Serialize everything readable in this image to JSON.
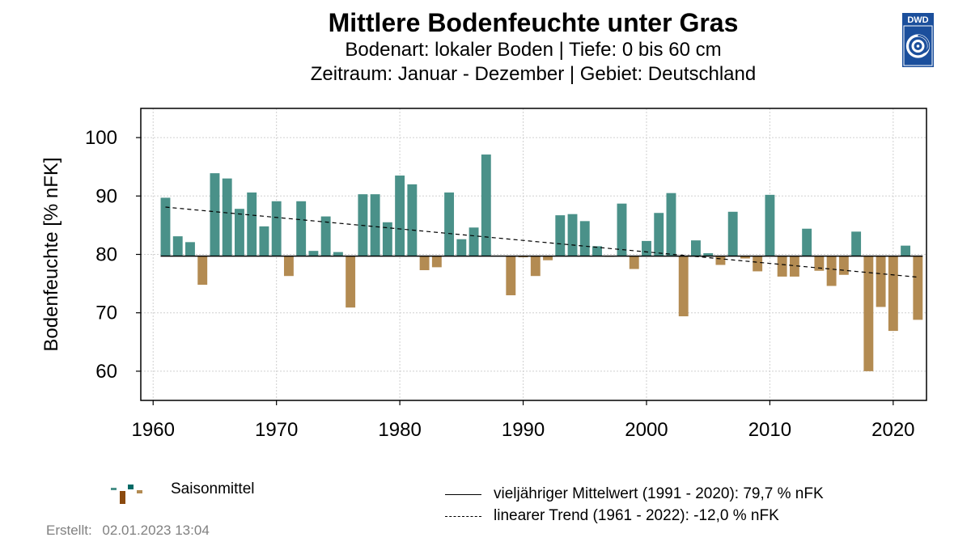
{
  "header": {
    "title": "Mittlere Bodenfeuchte unter Gras",
    "subtitle1": "Bodenart: lokaler Boden | Tiefe: 0 bis 60 cm",
    "subtitle2": "Zeitraum: Januar - Dezember | Gebiet: Deutschland",
    "logo_text": "DWD"
  },
  "legend": {
    "season_label": "Saisonmittel",
    "mean_label": "vieljähriger Mittelwert (1991 - 2020): 79,7 % nFK",
    "trend_label": "linearer Trend (1961 - 2022): -12,0 % nFK"
  },
  "footer": {
    "created_label": "Erstellt:",
    "created_value": "02.01.2023 13:04"
  },
  "colors": {
    "above": "#4a9189",
    "below": "#b38b52",
    "logo_bg": "#1b4f9c"
  },
  "chart_data": {
    "type": "bar",
    "ylabel": "Bodenfeuchte [% nFK]",
    "xlim": [
      1959,
      2022.7
    ],
    "ylim": [
      55,
      105
    ],
    "x_ticks": [
      1960,
      1970,
      1980,
      1990,
      2000,
      2010,
      2020
    ],
    "y_ticks": [
      60,
      70,
      80,
      90,
      100
    ],
    "grid": true,
    "baseline": 79.7,
    "trend": {
      "start": [
        1961,
        88.1
      ],
      "end": [
        2022,
        76.1
      ]
    },
    "years": [
      1961,
      1962,
      1963,
      1964,
      1965,
      1966,
      1967,
      1968,
      1969,
      1970,
      1971,
      1972,
      1973,
      1974,
      1975,
      1976,
      1977,
      1978,
      1979,
      1980,
      1981,
      1982,
      1983,
      1984,
      1985,
      1986,
      1987,
      1988,
      1989,
      1990,
      1991,
      1992,
      1993,
      1994,
      1995,
      1996,
      1997,
      1998,
      1999,
      2000,
      2001,
      2002,
      2003,
      2004,
      2005,
      2006,
      2007,
      2008,
      2009,
      2010,
      2011,
      2012,
      2013,
      2014,
      2015,
      2016,
      2017,
      2018,
      2019,
      2020,
      2021,
      2022
    ],
    "values": [
      89.7,
      83.1,
      82.1,
      74.8,
      93.9,
      93.0,
      87.8,
      90.6,
      84.8,
      89.1,
      76.3,
      89.1,
      80.6,
      86.5,
      80.4,
      70.9,
      90.3,
      90.3,
      85.5,
      93.5,
      92.0,
      77.3,
      77.8,
      90.6,
      82.6,
      84.6,
      97.1,
      79.8,
      73.0,
      79.5,
      76.3,
      79.0,
      86.7,
      86.9,
      85.7,
      81.4,
      79.6,
      88.7,
      77.5,
      82.3,
      87.1,
      90.5,
      69.4,
      82.4,
      80.2,
      78.2,
      87.3,
      79.3,
      77.1,
      90.2,
      76.2,
      76.2,
      84.4,
      77.2,
      74.6,
      76.5,
      83.9,
      60.0,
      71.0,
      66.9,
      81.5,
      68.8
    ]
  }
}
